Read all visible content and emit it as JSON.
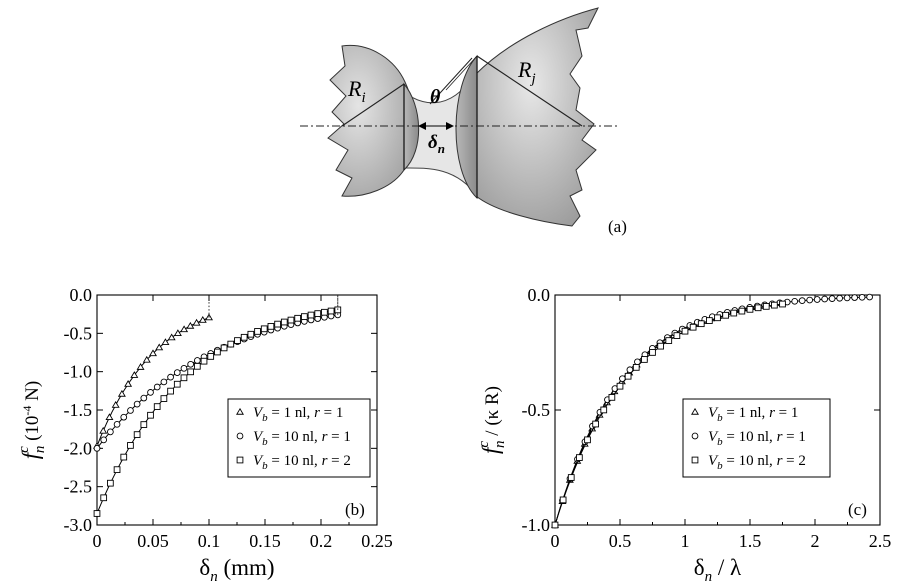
{
  "diagram": {
    "label_ri": "R",
    "label_ri_sub": "i",
    "label_rj": "R",
    "label_rj_sub": "j",
    "label_theta": "θ",
    "label_delta": "δ",
    "label_delta_sub": "n",
    "panel_label": "(a)"
  },
  "chart_data": [
    {
      "type": "scatter",
      "panel_label": "(b)",
      "xlabel": "δ",
      "xlabel_sub": "n",
      "xlabel_unit": "(mm)",
      "ylabel_main": "f",
      "ylabel_sup": "c",
      "ylabel_sub": "n",
      "ylabel_unit": "(10",
      "ylabel_exp": "-4",
      "ylabel_unit_end": "N)",
      "xlim": [
        0,
        0.25
      ],
      "ylim": [
        -3.0,
        0.0
      ],
      "xticks": [
        "0",
        "0.05",
        "0.1",
        "0.15",
        "0.2",
        "0.25"
      ],
      "yticks": [
        "0.0",
        "-0.5",
        "-1.0",
        "-1.5",
        "-2.0",
        "-2.5",
        "-3.0"
      ],
      "legend_position": "bottom-right",
      "series": [
        {
          "name": "V_b = 1 nl, r = 1",
          "marker": "triangle",
          "x_max": 0.1,
          "y_start": -1.97,
          "decay": 19.0
        },
        {
          "name": "V_b = 10 nl, r = 1",
          "marker": "circle",
          "x_max": 0.215,
          "y_start": -2.0,
          "decay": 9.5
        },
        {
          "name": "V_b = 10 nl, r = 2",
          "marker": "square",
          "x_max": 0.215,
          "y_start": -2.85,
          "decay": 12.5
        }
      ],
      "legend": [
        {
          "marker": "triangle",
          "v": "V",
          "v_sub": "b",
          "rest1": " = 1 nl, ",
          "r": "r",
          "rest2": " = 1"
        },
        {
          "marker": "circle",
          "v": "V",
          "v_sub": "b",
          "rest1": " = 10 nl, ",
          "r": "r",
          "rest2": " = 1"
        },
        {
          "marker": "square",
          "v": "V",
          "v_sub": "b",
          "rest1": " = 10 nl, ",
          "r": "r",
          "rest2": " = 2"
        }
      ]
    },
    {
      "type": "scatter",
      "panel_label": "(c)",
      "xlabel": "δ",
      "xlabel_sub": "n",
      "xlabel_rest": " / λ",
      "ylabel_main": "f",
      "ylabel_sup": "c",
      "ylabel_sub": "n",
      "ylabel_rest": " / (κ R)",
      "xlim": [
        0,
        2.5
      ],
      "ylim": [
        -1.0,
        0.0
      ],
      "xticks": [
        "0",
        "0.5",
        "1",
        "1.5",
        "2",
        "2.5"
      ],
      "yticks": [
        "0.0",
        "-0.5",
        "-1.0"
      ],
      "legend_position": "bottom-right",
      "series": [
        {
          "name": "V_b = 1 nl, r = 1",
          "marker": "triangle",
          "x_max": 1.6,
          "y_start": -1.0,
          "decay": 1.9
        },
        {
          "name": "V_b = 10 nl, r = 1",
          "marker": "circle",
          "x_max": 2.42,
          "y_start": -1.0,
          "decay": 1.95
        },
        {
          "name": "V_b = 10 nl, r = 2",
          "marker": "square",
          "x_max": 1.75,
          "y_start": -1.0,
          "decay": 1.85
        }
      ],
      "legend": [
        {
          "marker": "triangle",
          "v": "V",
          "v_sub": "b",
          "rest1": " = 1 nl, ",
          "r": "r",
          "rest2": " = 1"
        },
        {
          "marker": "circle",
          "v": "V",
          "v_sub": "b",
          "rest1": " = 10 nl, ",
          "r": "r",
          "rest2": " = 1"
        },
        {
          "marker": "square",
          "v": "V",
          "v_sub": "b",
          "rest1": " = 10 nl, ",
          "r": "r",
          "rest2": " = 2"
        }
      ]
    }
  ]
}
